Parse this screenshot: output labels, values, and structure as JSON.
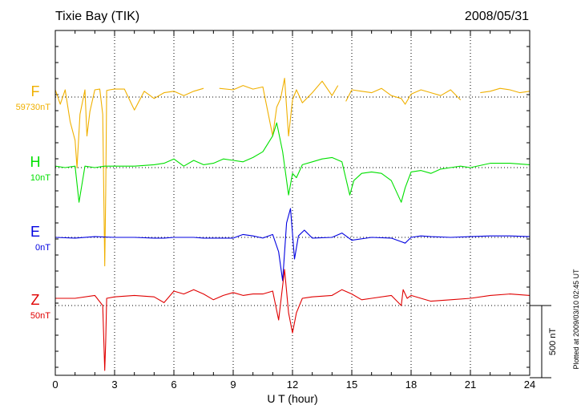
{
  "chart_data": {
    "type": "line",
    "title": "Tixie Bay (TIK)",
    "date": "2008/05/31",
    "xlabel": "U T (hour)",
    "xlim": [
      0,
      24
    ],
    "x_ticks": [
      0,
      3,
      6,
      9,
      12,
      15,
      18,
      21,
      24
    ],
    "x_tick_labels": [
      "0",
      "3",
      "6",
      "9",
      "12",
      "15",
      "18",
      "21",
      "24"
    ],
    "scale_bar_label": "500 nT",
    "scale_bar_nT": 500,
    "plotted_note": "Plotted at 2009/03/10 02:45 UT",
    "grid": true,
    "series": [
      {
        "name": "F",
        "baseline_label": "59730nT",
        "color": "#f0b000",
        "trace_offset_nT": 30,
        "x": [
          0,
          0.25,
          0.5,
          0.75,
          1.0,
          1.1,
          1.25,
          1.5,
          1.6,
          1.75,
          2.0,
          2.25,
          2.4,
          2.5,
          2.55,
          2.6,
          2.75,
          3.0,
          3.5,
          4.0,
          4.5,
          5.0,
          5.5,
          6.0,
          6.5,
          7.0,
          7.5,
          7.7,
          8.3,
          9.0,
          9.5,
          10.0,
          10.5,
          11.0,
          11.2,
          11.4,
          11.6,
          11.8,
          12.0,
          12.2,
          12.5,
          13.0,
          13.5,
          14.0,
          14.3,
          14.5,
          14.7,
          15.0,
          15.5,
          16.0,
          16.5,
          17.0,
          17.5,
          17.7,
          18.0,
          18.5,
          19.0,
          19.5,
          20.0,
          20.5,
          21.0,
          21.5,
          22.0,
          22.5,
          23.0,
          23.5,
          24.0
        ],
        "y": [
          20,
          -80,
          20,
          -200,
          -330,
          -520,
          -150,
          20,
          -300,
          -130,
          20,
          25,
          -150,
          -1200,
          -700,
          15,
          20,
          25,
          25,
          -120,
          10,
          -40,
          0,
          10,
          -20,
          10,
          30,
          null,
          30,
          20,
          50,
          25,
          40,
          -300,
          -100,
          -40,
          100,
          -300,
          -50,
          20,
          -70,
          0,
          80,
          -20,
          50,
          null,
          -60,
          20,
          10,
          0,
          30,
          -20,
          -40,
          -80,
          -10,
          20,
          0,
          -20,
          20,
          -50,
          null,
          0,
          10,
          30,
          20,
          0,
          10
        ]
      },
      {
        "name": "H",
        "baseline_label": "10nT",
        "color": "#00e000",
        "trace_offset_nT": 10,
        "x": [
          0,
          0.5,
          1.0,
          1.2,
          1.5,
          2.0,
          2.5,
          3.0,
          4.0,
          5.0,
          5.5,
          6.0,
          6.5,
          7.0,
          7.5,
          8.0,
          8.5,
          9.0,
          9.5,
          10.0,
          10.5,
          11.0,
          11.2,
          11.5,
          11.8,
          12.0,
          12.2,
          12.5,
          13.0,
          13.5,
          14.0,
          14.5,
          14.9,
          15.1,
          15.5,
          16.0,
          16.5,
          17.0,
          17.5,
          17.7,
          18.0,
          18.5,
          19.0,
          19.5,
          20.0,
          20.5,
          21.0,
          22.0,
          23.0,
          24.0
        ],
        "y": [
          0,
          -10,
          0,
          -250,
          0,
          -10,
          0,
          0,
          0,
          10,
          20,
          50,
          0,
          40,
          10,
          20,
          50,
          40,
          30,
          60,
          100,
          210,
          300,
          100,
          -200,
          -50,
          -80,
          10,
          30,
          50,
          60,
          30,
          -200,
          -100,
          -50,
          -40,
          -50,
          -100,
          -250,
          -150,
          -40,
          -30,
          -50,
          -20,
          -10,
          0,
          -10,
          20,
          20,
          10
        ]
      },
      {
        "name": "E",
        "baseline_label": "0nT",
        "color": "#0000e0",
        "trace_offset_nT": 0,
        "x": [
          0,
          1.0,
          2.0,
          3.0,
          4.0,
          5.0,
          5.5,
          6.0,
          7.0,
          7.5,
          8.0,
          9.0,
          9.5,
          10.0,
          10.5,
          11.0,
          11.3,
          11.5,
          11.7,
          11.9,
          12.1,
          12.3,
          12.6,
          13.0,
          14.0,
          14.5,
          15.0,
          16.0,
          17.0,
          17.5,
          17.7,
          18.0,
          18.5,
          19.0,
          20.0,
          21.0,
          22.0,
          23.0,
          24.0
        ],
        "y": [
          0,
          -5,
          5,
          0,
          0,
          -5,
          -5,
          0,
          0,
          -5,
          -5,
          -5,
          20,
          10,
          -5,
          20,
          -100,
          -300,
          100,
          200,
          -150,
          10,
          50,
          -5,
          0,
          30,
          -20,
          0,
          -5,
          -30,
          -40,
          0,
          10,
          5,
          0,
          5,
          10,
          10,
          5
        ]
      },
      {
        "name": "Z",
        "baseline_label": "50nT",
        "color": "#e00000",
        "trace_offset_nT": 50,
        "x": [
          0,
          1.0,
          2.0,
          2.4,
          2.5,
          2.55,
          2.6,
          3.0,
          4.0,
          5.0,
          5.5,
          6.0,
          6.5,
          7.0,
          7.5,
          8.0,
          8.5,
          9.0,
          9.5,
          10.0,
          10.5,
          11.0,
          11.3,
          11.6,
          11.8,
          12.0,
          12.2,
          12.5,
          13.0,
          14.0,
          14.5,
          15.0,
          15.5,
          16.0,
          17.0,
          17.5,
          17.6,
          17.8,
          18.0,
          18.5,
          19.0,
          20.0,
          21.0,
          22.0,
          23.0,
          24.0
        ],
        "y": [
          0,
          0,
          20,
          -50,
          -500,
          -300,
          0,
          10,
          20,
          10,
          -30,
          50,
          30,
          60,
          30,
          -10,
          20,
          40,
          20,
          30,
          30,
          50,
          -150,
          200,
          -100,
          -240,
          -100,
          0,
          10,
          20,
          60,
          30,
          -10,
          0,
          20,
          -50,
          60,
          0,
          20,
          0,
          -20,
          -10,
          0,
          20,
          30,
          20
        ]
      }
    ]
  }
}
